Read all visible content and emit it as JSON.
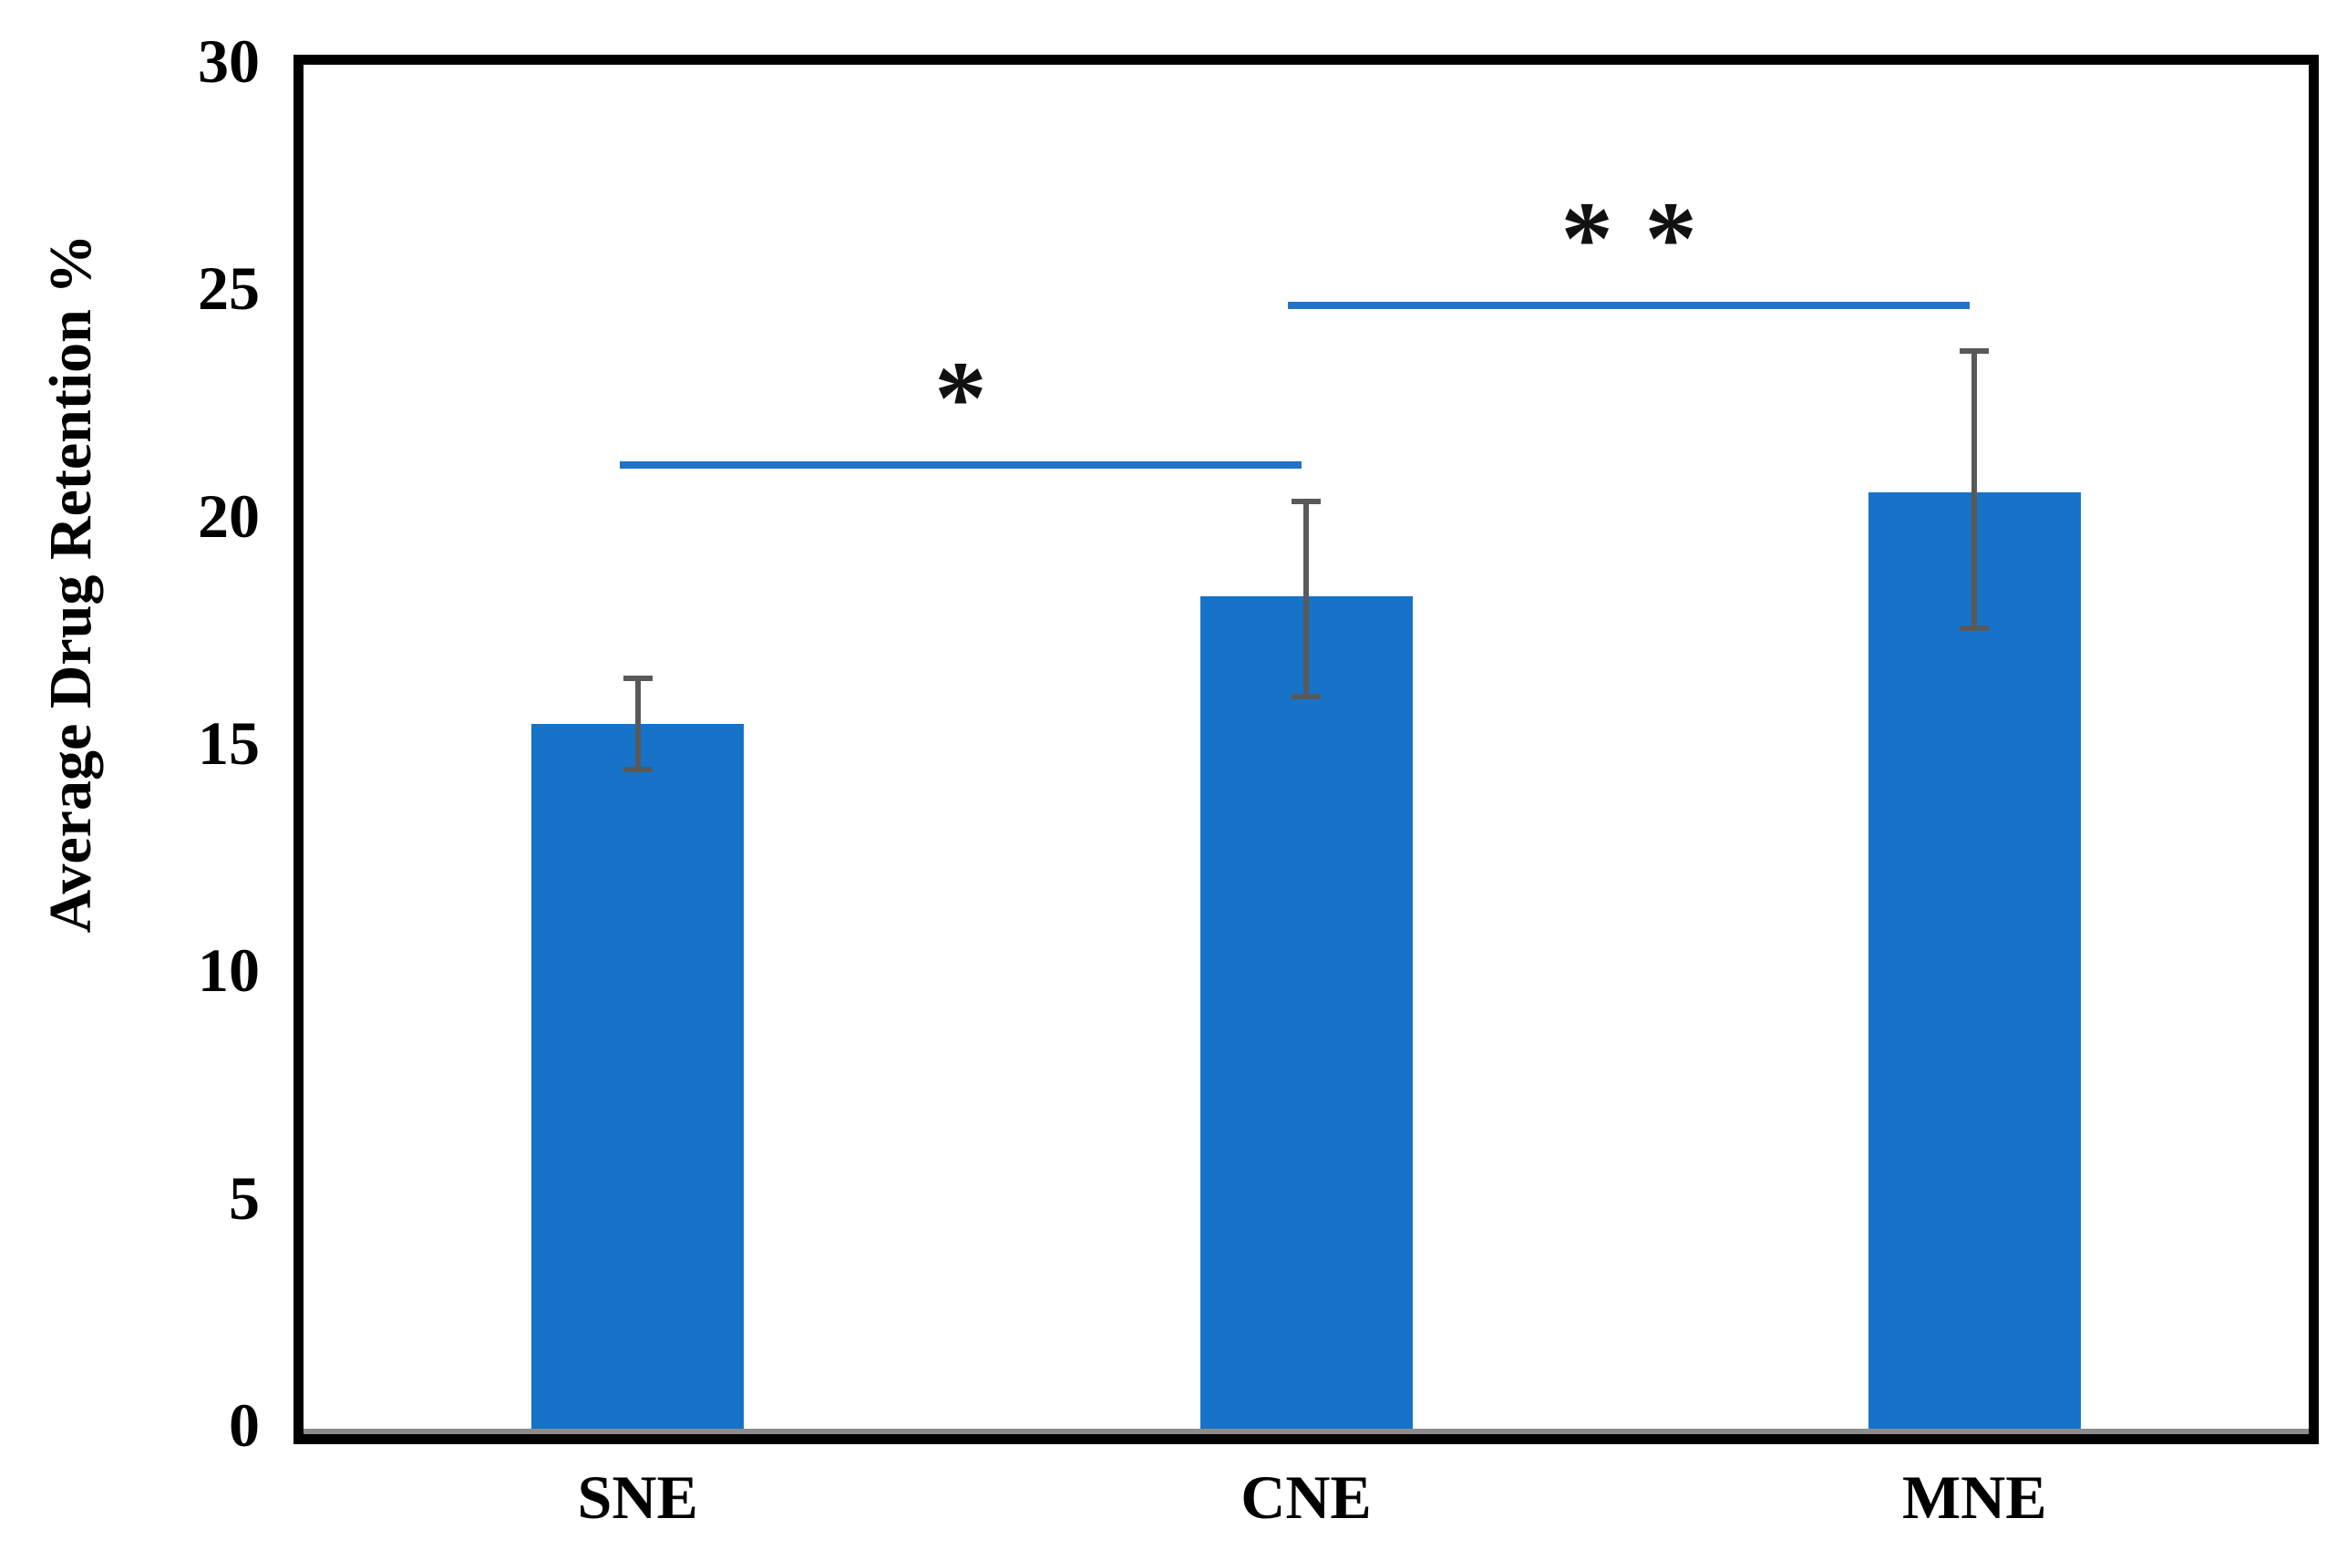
{
  "chart_data": {
    "type": "bar",
    "title": "",
    "ylabel": "Average Drug Retention %",
    "xlabel": "",
    "categories": [
      "SNE",
      "CNE",
      "MNE"
    ],
    "values": [
      15.5,
      18.3,
      20.6
    ],
    "error_upper": [
      16.5,
      20.4,
      23.7
    ],
    "error_lower": [
      14.5,
      16.1,
      17.6
    ],
    "ylim": [
      0,
      30
    ],
    "yticks": [
      0,
      5,
      10,
      15,
      20,
      25,
      30
    ],
    "grid": false,
    "legend": false,
    "bar_color": "#1673C8",
    "error_bar_color": "#595959",
    "sig_line_color": "#2273C6",
    "axis_line_color": "#8c8c8c",
    "frame_color": "#000000",
    "significance": [
      {
        "from": "SNE",
        "to": "CNE",
        "label": "*",
        "line_y": 21.2
      },
      {
        "from": "CNE",
        "to": "MNE",
        "label": "**",
        "line_y": 24.7
      }
    ]
  }
}
